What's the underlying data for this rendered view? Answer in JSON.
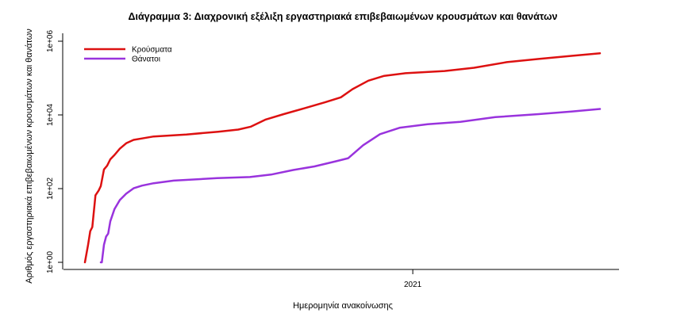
{
  "chart_data": {
    "type": "line",
    "title": "Διάγραμμα 3: Διαχρονική εξέλιξη εργαστηριακά επιβεβαιωμένων κρουσμάτων και θανάτων",
    "xlabel": "Ημερομηνία ανακοίνωσης",
    "ylabel": "Αριθμός εργαστηριακά επιβεβαιωμένων κρουσμάτων και θανάτων",
    "y_scale": "log10",
    "ylim": [
      1,
      1000000
    ],
    "y_ticks": [
      {
        "value": 1,
        "label": "1e+00"
      },
      {
        "value": 100,
        "label": "1e+02"
      },
      {
        "value": 10000,
        "label": "1e+04"
      },
      {
        "value": 1000000,
        "label": "1e+06"
      }
    ],
    "xlim": [
      "2020-02-26",
      "2021-06-27"
    ],
    "x_ticks": [
      {
        "value": "2021-01-01",
        "label": "2021"
      }
    ],
    "legend_position": "top-left",
    "grid": false,
    "series": [
      {
        "name": "Κρούσματα",
        "color": "#dd1111",
        "points": [
          [
            "2020-02-26",
            1
          ],
          [
            "2020-02-29",
            3
          ],
          [
            "2020-03-02",
            7
          ],
          [
            "2020-03-04",
            9
          ],
          [
            "2020-03-07",
            66
          ],
          [
            "2020-03-10",
            89
          ],
          [
            "2020-03-12",
            117
          ],
          [
            "2020-03-15",
            331
          ],
          [
            "2020-03-18",
            418
          ],
          [
            "2020-03-21",
            624
          ],
          [
            "2020-03-25",
            821
          ],
          [
            "2020-03-30",
            1212
          ],
          [
            "2020-04-05",
            1700
          ],
          [
            "2020-04-12",
            2100
          ],
          [
            "2020-04-20",
            2300
          ],
          [
            "2020-05-01",
            2600
          ],
          [
            "2020-06-01",
            2950
          ],
          [
            "2020-07-01",
            3500
          ],
          [
            "2020-07-20",
            4000
          ],
          [
            "2020-08-01",
            4800
          ],
          [
            "2020-08-15",
            7500
          ],
          [
            "2020-09-01",
            10500
          ],
          [
            "2020-09-20",
            15000
          ],
          [
            "2020-10-10",
            22000
          ],
          [
            "2020-10-25",
            30000
          ],
          [
            "2020-11-05",
            50000
          ],
          [
            "2020-11-20",
            85000
          ],
          [
            "2020-12-05",
            115000
          ],
          [
            "2020-12-25",
            135000
          ],
          [
            "2021-01-31",
            155000
          ],
          [
            "2021-02-28",
            190000
          ],
          [
            "2021-03-31",
            270000
          ],
          [
            "2021-04-30",
            330000
          ],
          [
            "2021-05-31",
            400000
          ],
          [
            "2021-06-27",
            470000
          ]
        ]
      },
      {
        "name": "Θάνατοι",
        "color": "#9933dd",
        "points": [
          [
            "2020-03-12",
            1
          ],
          [
            "2020-03-13",
            1
          ],
          [
            "2020-03-15",
            3
          ],
          [
            "2020-03-17",
            5
          ],
          [
            "2020-03-19",
            6
          ],
          [
            "2020-03-21",
            13
          ],
          [
            "2020-03-25",
            28
          ],
          [
            "2020-03-30",
            49
          ],
          [
            "2020-04-05",
            73
          ],
          [
            "2020-04-12",
            102
          ],
          [
            "2020-04-20",
            121
          ],
          [
            "2020-05-01",
            140
          ],
          [
            "2020-05-20",
            165
          ],
          [
            "2020-06-30",
            192
          ],
          [
            "2020-07-31",
            206
          ],
          [
            "2020-08-20",
            240
          ],
          [
            "2020-09-10",
            320
          ],
          [
            "2020-09-30",
            400
          ],
          [
            "2020-10-20",
            550
          ],
          [
            "2020-11-01",
            670
          ],
          [
            "2020-11-15",
            1500
          ],
          [
            "2020-12-01",
            3000
          ],
          [
            "2020-12-20",
            4500
          ],
          [
            "2021-01-15",
            5600
          ],
          [
            "2021-02-15",
            6500
          ],
          [
            "2021-03-20",
            8700
          ],
          [
            "2021-04-30",
            10500
          ],
          [
            "2021-05-31",
            12300
          ],
          [
            "2021-06-27",
            14500
          ]
        ]
      }
    ]
  }
}
